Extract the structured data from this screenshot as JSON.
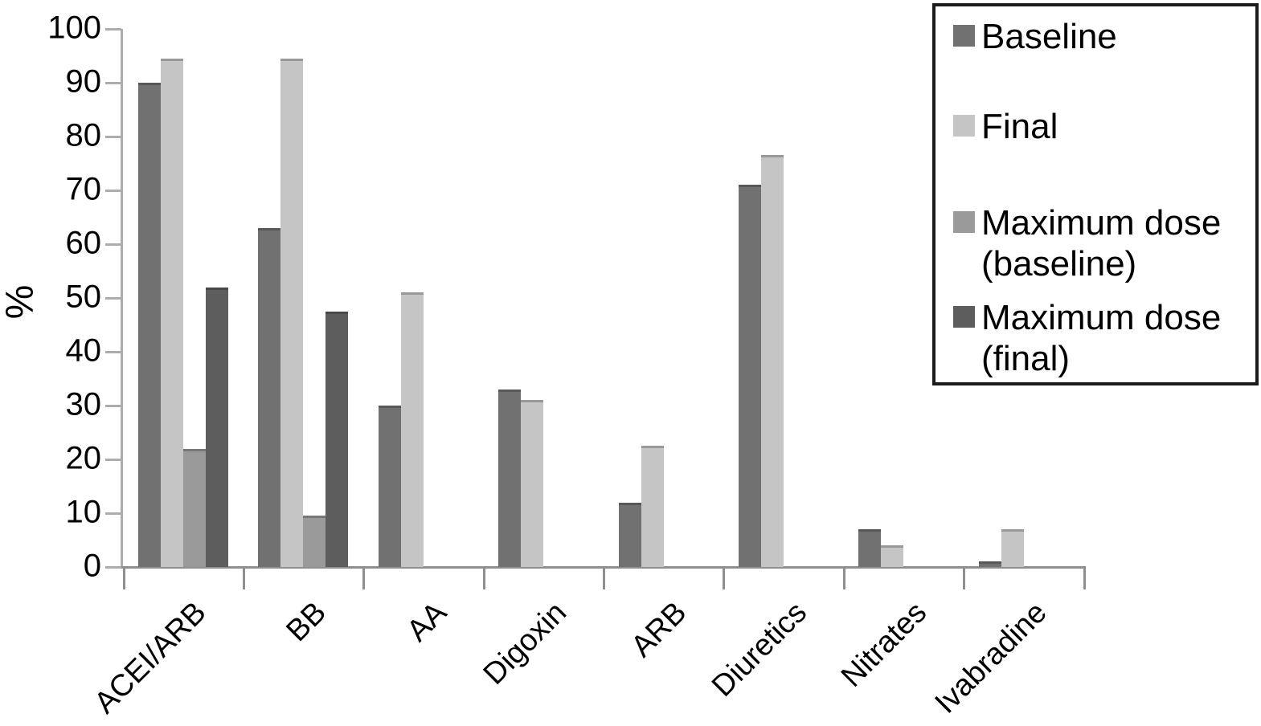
{
  "chart_data": {
    "type": "bar",
    "title": "",
    "xlabel": "",
    "ylabel": "%",
    "ylim": [
      0,
      100
    ],
    "yticks": [
      0,
      10,
      20,
      30,
      40,
      50,
      60,
      70,
      80,
      90,
      100
    ],
    "grid": false,
    "legend_position": "top-right",
    "categories": [
      "ACEI/ARB",
      "BB",
      "AA",
      "Digoxin",
      "ARB",
      "Diuretics",
      "Nitrates",
      "Ivabradine"
    ],
    "series": [
      {
        "name": "Baseline",
        "color": "#717171",
        "values": [
          90,
          63,
          30,
          33,
          12,
          71,
          7,
          1
        ]
      },
      {
        "name": "Final",
        "color": "#c5c5c5",
        "values": [
          94.5,
          94.5,
          51,
          31,
          22.5,
          76.5,
          4,
          7
        ]
      },
      {
        "name": "Maximum dose (baseline)",
        "color": "#9a9a9a",
        "values": [
          22,
          9.5,
          null,
          null,
          null,
          null,
          null,
          null
        ]
      },
      {
        "name": "Maximum dose (final)",
        "color": "#5d5d5d",
        "values": [
          52,
          47.5,
          null,
          null,
          null,
          null,
          null,
          null
        ]
      }
    ],
    "legend": {
      "entries": [
        {
          "label_lines": [
            "Baseline"
          ],
          "color": "#717171"
        },
        {
          "label_lines": [
            "Final"
          ],
          "color": "#c5c5c5"
        },
        {
          "label_lines": [
            "Maximum dose",
            "(baseline)"
          ],
          "color": "#9a9a9a"
        },
        {
          "label_lines": [
            "Maximum dose",
            "(final)"
          ],
          "color": "#5d5d5d"
        }
      ]
    },
    "axis_colors": {
      "y_axis": "#adadad",
      "x_axis": "#8f8f8f"
    }
  }
}
